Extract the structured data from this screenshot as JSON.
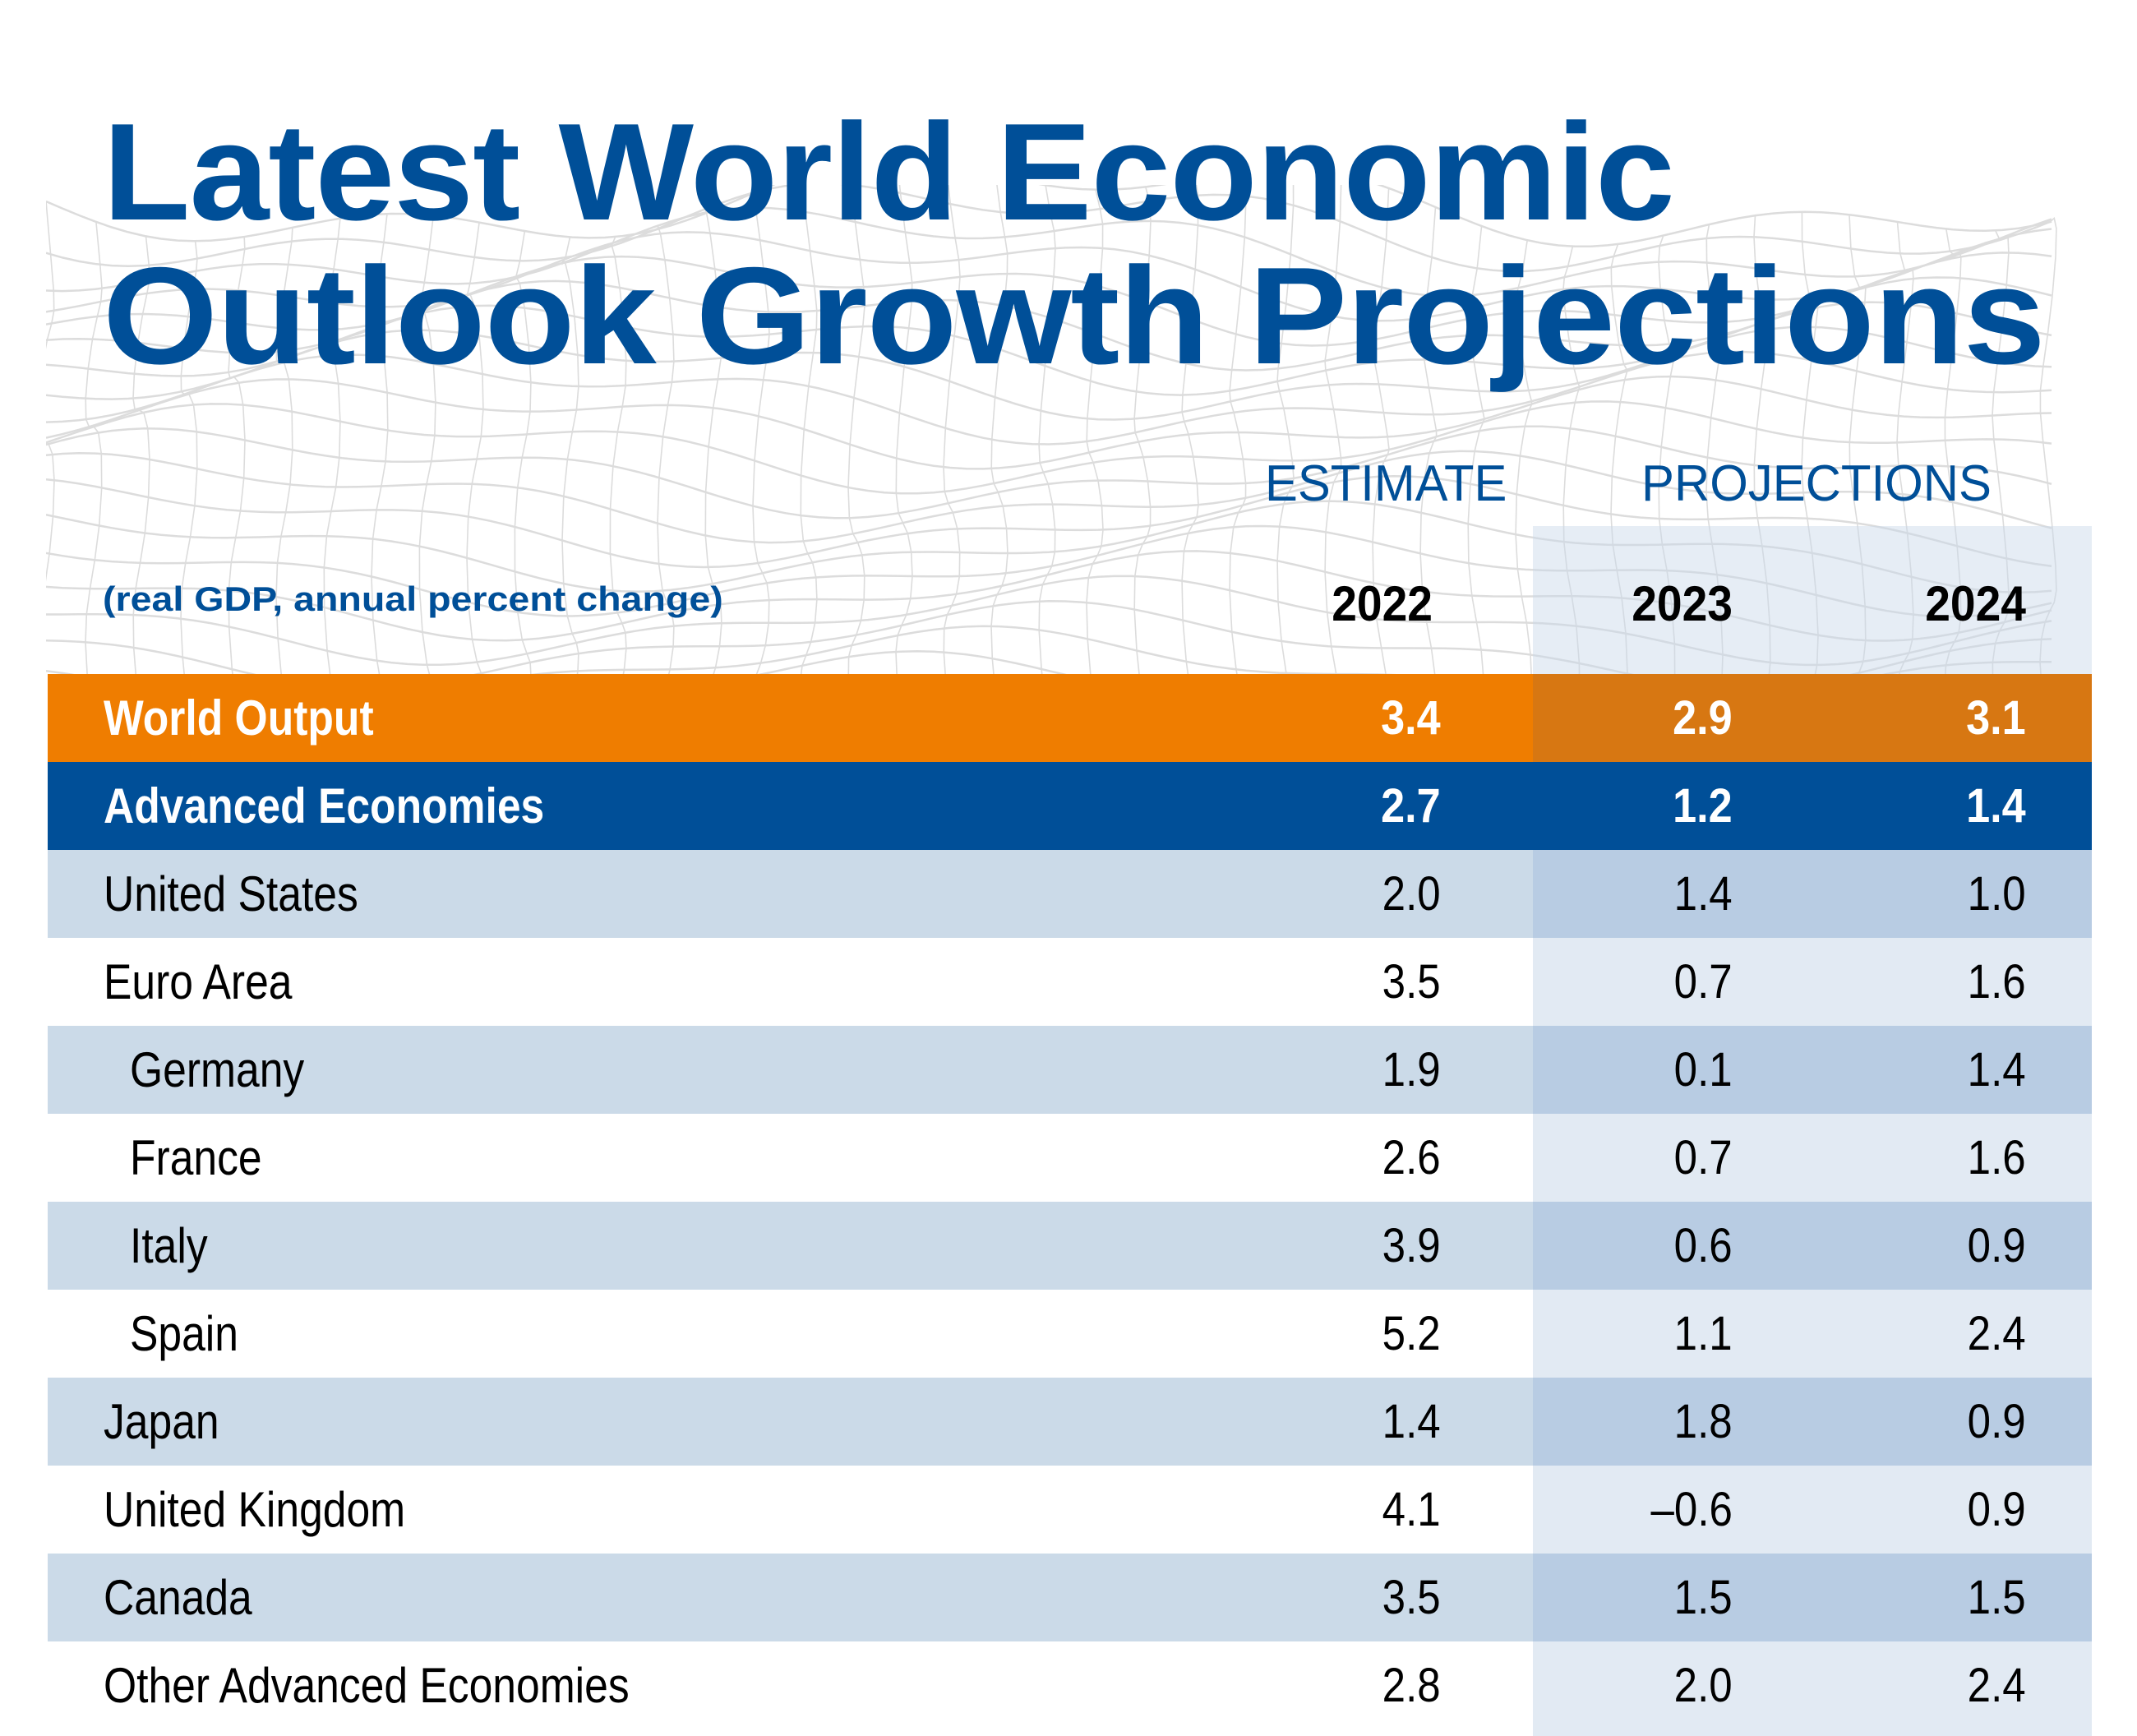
{
  "title": {
    "line1": "Latest World Economic",
    "line2": "Outlook Growth Projections"
  },
  "subtitle": "(real GDP, annual percent change)",
  "column_groups": {
    "estimate": "ESTIMATE",
    "projections": "PROJECTIONS"
  },
  "years": [
    "2022",
    "2023",
    "2024"
  ],
  "colors": {
    "title_blue": "#004F98",
    "world_output_orange": "#EF7D00",
    "world_output_orange_projection": "#D77712",
    "advanced_economies_blue": "#004F98",
    "row_tint": "#CBDAE8",
    "row_tint_projection": "#B8CCE3",
    "row_plain_projection": "#E2EAF3"
  },
  "chart_data": {
    "type": "table",
    "title": "Latest World Economic Outlook Growth Projections",
    "subtitle": "(real GDP, annual percent change)",
    "columns": [
      "",
      "2022",
      "2023",
      "2024"
    ],
    "column_groups": [
      {
        "label": "ESTIMATE",
        "years": [
          "2022"
        ]
      },
      {
        "label": "PROJECTIONS",
        "years": [
          "2023",
          "2024"
        ]
      }
    ],
    "rows": [
      {
        "label": "World Output",
        "style": "world",
        "values": [
          "3.4",
          "2.9",
          "3.1"
        ]
      },
      {
        "label": "Advanced Economies",
        "style": "adv",
        "values": [
          "2.7",
          "1.2",
          "1.4"
        ]
      },
      {
        "label": "United States",
        "style": "tint",
        "values": [
          "2.0",
          "1.4",
          "1.0"
        ]
      },
      {
        "label": "Euro Area",
        "style": "plain",
        "values": [
          "3.5",
          "0.7",
          "1.6"
        ]
      },
      {
        "label": "Germany",
        "style": "tint",
        "indent": true,
        "values": [
          "1.9",
          "0.1",
          "1.4"
        ]
      },
      {
        "label": "France",
        "style": "plain",
        "indent": true,
        "values": [
          "2.6",
          "0.7",
          "1.6"
        ]
      },
      {
        "label": "Italy",
        "style": "tint",
        "indent": true,
        "values": [
          "3.9",
          "0.6",
          "0.9"
        ]
      },
      {
        "label": "Spain",
        "style": "plain",
        "indent": true,
        "values": [
          "5.2",
          "1.1",
          "2.4"
        ]
      },
      {
        "label": "Japan",
        "style": "tint",
        "values": [
          "1.4",
          "1.8",
          "0.9"
        ]
      },
      {
        "label": "United Kingdom",
        "style": "plain",
        "values": [
          "4.1",
          "–0.6",
          "0.9"
        ]
      },
      {
        "label": "Canada",
        "style": "tint",
        "values": [
          "3.5",
          "1.5",
          "1.5"
        ]
      },
      {
        "label": "Other Advanced Economies",
        "style": "plain",
        "values": [
          "2.8",
          "2.0",
          "2.4"
        ]
      }
    ]
  }
}
